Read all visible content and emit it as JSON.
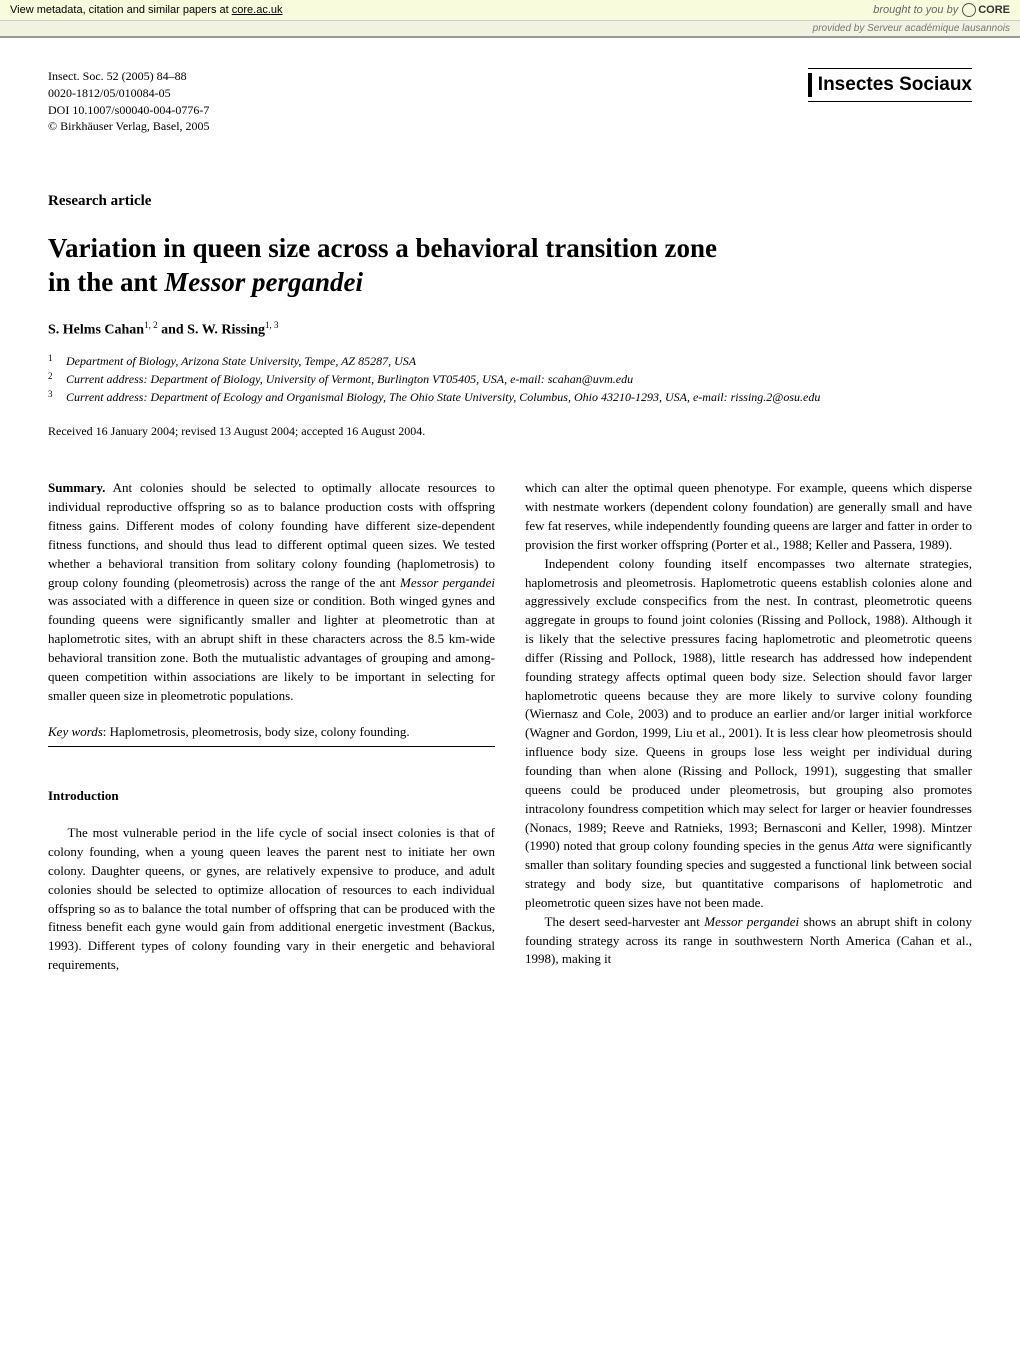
{
  "core_banner": {
    "left_prefix": "View metadata, citation and similar papers at ",
    "left_link": "core.ac.uk",
    "right_prefix": "brought to you by ",
    "logo_text": "CORE"
  },
  "sub_banner": {
    "prefix": "provided by ",
    "provider": "Serveur académique lausannois"
  },
  "citation": {
    "line1": "Insect. Soc. 52 (2005) 84–88",
    "line2": "0020-1812/05/010084-05",
    "line3": "DOI 10.1007/s00040-004-0776-7",
    "line4": "© Birkhäuser Verlag, Basel, 2005"
  },
  "journal_name": "Insectes Sociaux",
  "article_type": "Research article",
  "title_line1": "Variation in queen size across a behavioral transition zone",
  "title_line2_prefix": "in the ant ",
  "title_line2_italic": "Messor pergandei",
  "authors": {
    "author1": "S. Helms Cahan",
    "sup1": "1, 2",
    "and": " and ",
    "author2": "S. W. Rissing",
    "sup2": "1, 3"
  },
  "affiliations": [
    {
      "marker": "1",
      "text": "Department of Biology, Arizona State University, Tempe, AZ 85287, USA"
    },
    {
      "marker": "2",
      "text": "Current address: Department of Biology, University of Vermont, Burlington VT05405, USA, e-mail: scahan@uvm.edu"
    },
    {
      "marker": "3",
      "text": "Current address: Department of Ecology and Organismal Biology, The Ohio State University, Columbus, Ohio 43210-1293, USA, e-mail: rissing.2@osu.edu"
    }
  ],
  "received": "Received 16 January 2004; revised 13 August 2004; accepted 16 August 2004.",
  "summary": {
    "label": "Summary.",
    "text": " Ant colonies should be selected to optimally allocate resources to individual reproductive offspring so as to balance production costs with offspring fitness gains. Different modes of colony founding have different size-dependent fitness functions, and should thus lead to different optimal queen sizes. We tested whether a behavioral transition from solitary colony founding (haplometrosis) to group colony founding (pleometrosis) across the range of the ant ",
    "italic1": "Messor pergandei",
    "text2": " was associated with a difference in queen size or condition. Both winged gynes and founding queens were significantly smaller and lighter at pleometrotic than at haplometrotic sites, with an abrupt shift in these characters across the 8.5 km-wide behavioral transition zone. Both the mutualistic advantages of grouping and among-queen competition within associations are likely to be important in selecting for smaller queen size in pleometrotic populations."
  },
  "keywords": {
    "label": "Key words",
    "text": ": Haplometrosis, pleometrosis, body size, colony founding."
  },
  "intro_heading": "Introduction",
  "intro_para1": "The most vulnerable period in the life cycle of social insect colonies is that of colony founding, when a young queen leaves the parent nest to initiate her own colony. Daughter queens, or gynes, are relatively expensive to produce, and adult colonies should be selected to optimize allocation of resources to each individual offspring so as to balance the total number of offspring that can be produced with the fitness benefit each gyne would gain from additional energetic investment (Backus, 1993). Different types of colony founding vary in their energetic and behavioral requirements,",
  "col2_para1": "which can alter the optimal queen phenotype. For example, queens which disperse with nestmate workers (dependent colony foundation) are generally small and have few fat reserves, while independently founding queens are larger and fatter in order to provision the first worker offspring (Porter et al., 1988; Keller and Passera, 1989).",
  "col2_para2_a": "Independent colony founding itself encompasses two alternate strategies, haplometrosis and pleometrosis. Haplometrotic queens establish colonies alone and aggressively exclude conspecifics from the nest. In contrast, pleometrotic queens aggregate in groups to found joint colonies (Rissing and Pollock, 1988). Although it is likely that the selective pressures facing haplometrotic and pleometrotic queens differ (Rissing and Pollock, 1988), little research has addressed how independent founding strategy affects optimal queen body size. Selection should favor larger haplometrotic queens because they are more likely to survive colony founding (Wiernasz and Cole, 2003) and to produce an earlier and/or larger initial workforce (Wagner and Gordon, 1999, Liu et al., 2001). It is less clear how pleometrosis should influence body size. Queens in groups lose less weight per individual during founding than when alone (Rissing and Pollock, 1991), suggesting that smaller queens could be produced under pleometrosis, but grouping also promotes intracolony foundress competition which may select for larger or heavier foundresses (Nonacs, 1989; Reeve and Ratnieks, 1993; Bernasconi and Keller, 1998). Mintzer (1990) noted that group colony founding species in the genus ",
  "col2_para2_italic": "Atta",
  "col2_para2_b": " were significantly smaller than solitary founding species and suggested a functional link between social strategy and body size, but quantitative comparisons of haplometrotic and pleometrotic queen sizes have not been made.",
  "col2_para3_a": "The desert seed-harvester ant ",
  "col2_para3_italic": "Messor pergandei",
  "col2_para3_b": " shows an abrupt shift in colony founding strategy across its range in southwestern North America (Cahan et al., 1998), making it"
}
